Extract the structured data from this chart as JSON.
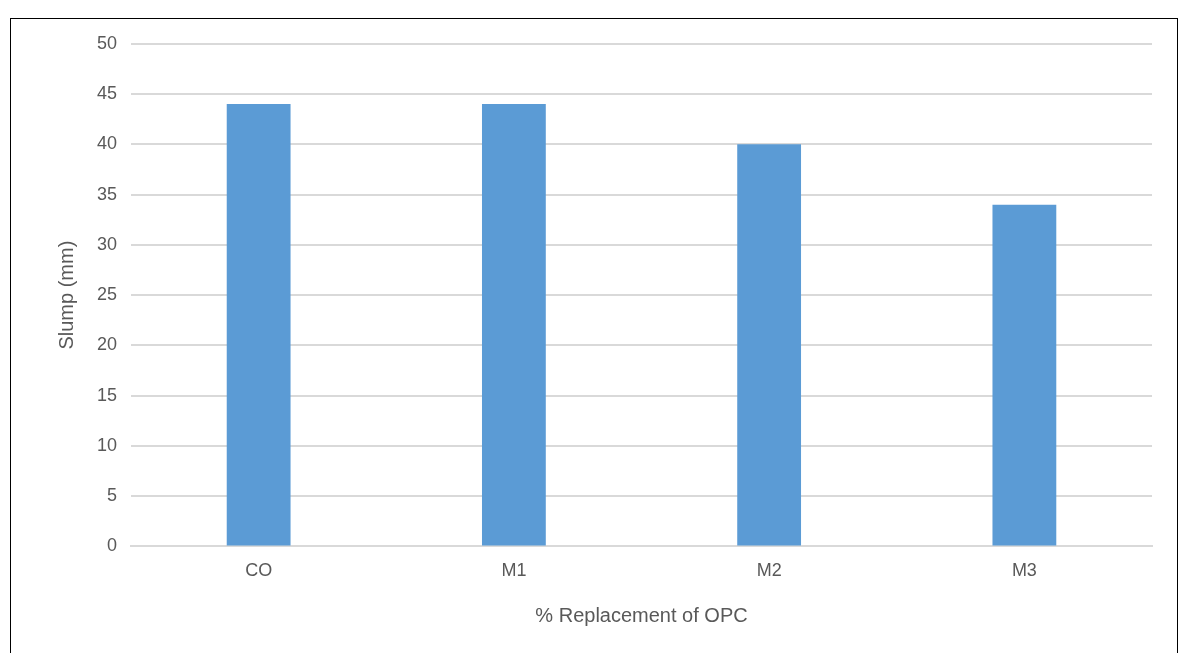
{
  "chart_data": {
    "type": "bar",
    "xlabel": "% Replacement of OPC",
    "ylabel": "Slump (mm)",
    "categories": [
      "CO",
      "M1",
      "M2",
      "M3"
    ],
    "values": [
      44,
      44,
      40,
      34
    ],
    "color": "#5b9bd5",
    "ylim": [
      0,
      50
    ],
    "yticks": [
      0,
      5,
      10,
      15,
      20,
      25,
      30,
      35,
      40,
      45,
      50
    ],
    "grid": "y",
    "legend": false
  }
}
